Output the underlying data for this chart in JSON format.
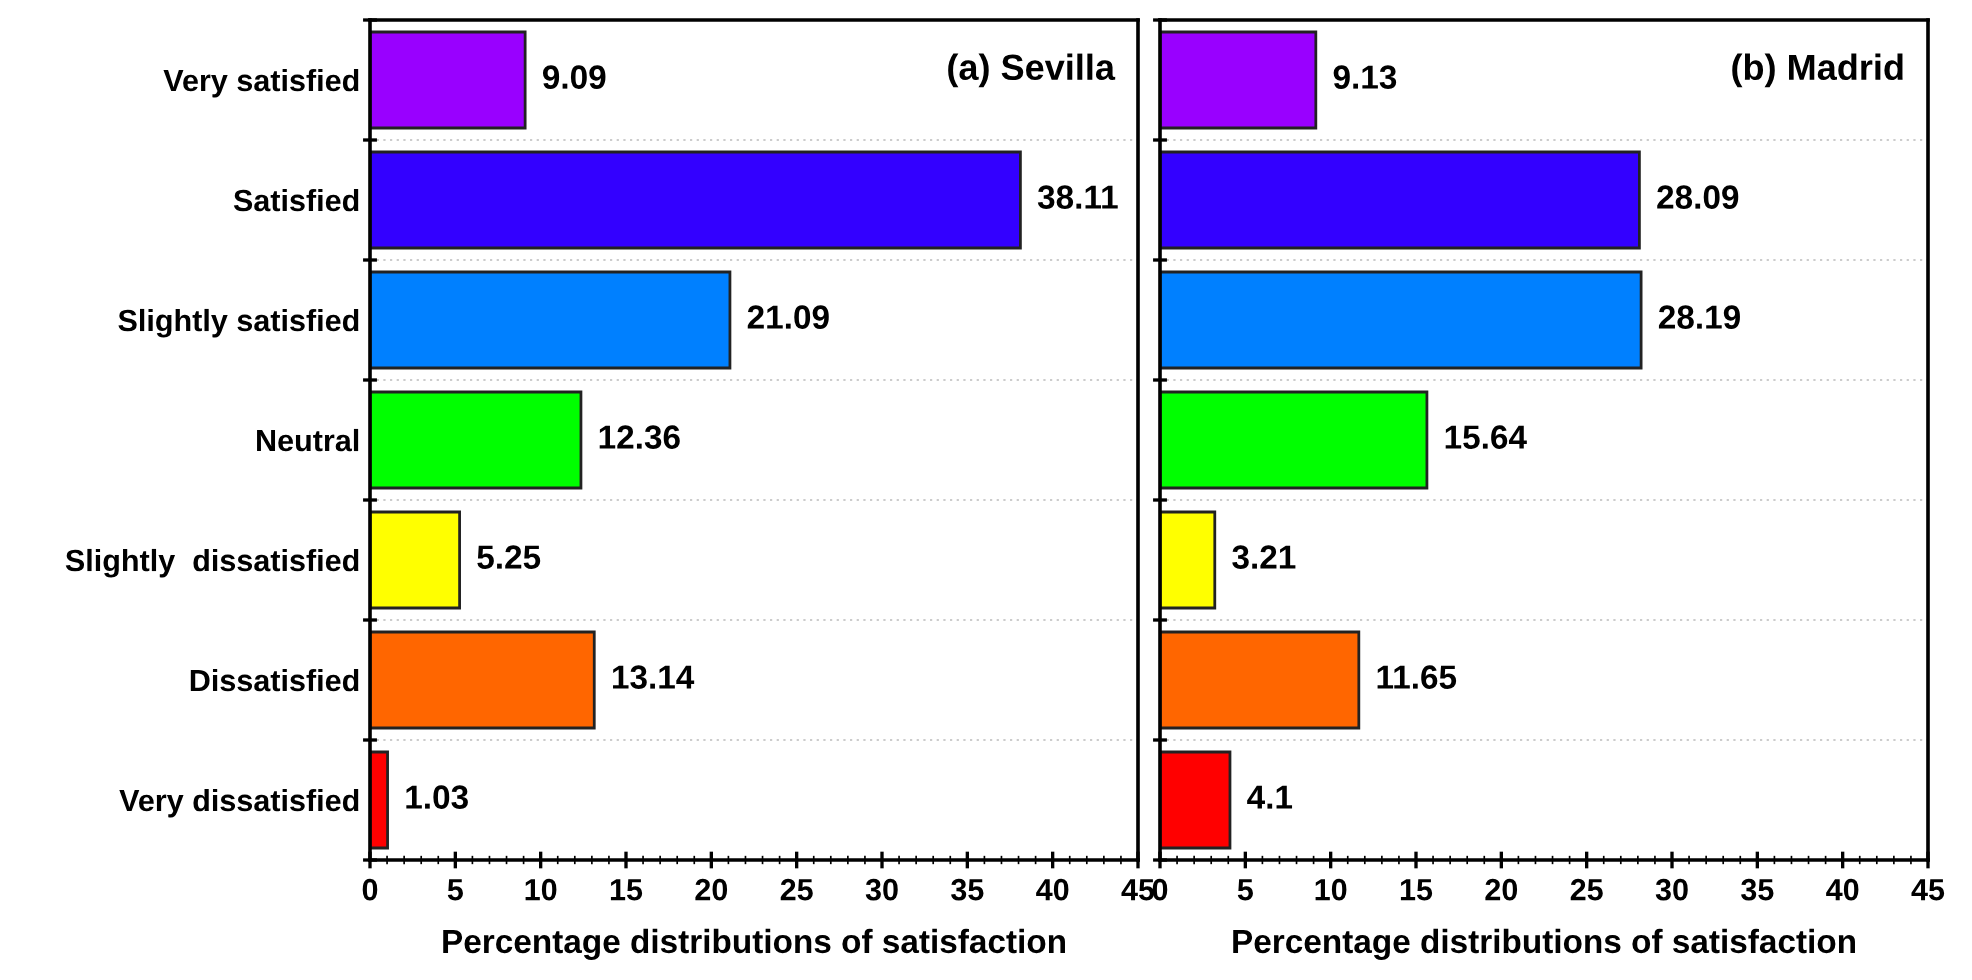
{
  "chart_data": [
    {
      "type": "bar",
      "orientation": "horizontal",
      "title": "(a) Sevilla",
      "xlabel": "Percentage distributions of satisfaction",
      "categories": [
        "Very satisfied",
        "Satisfied",
        "Slightly satisfied",
        "Neutral",
        "Slightly  dissatisfied",
        "Dissatisfied",
        "Very dissatisfied"
      ],
      "values": [
        9.09,
        38.11,
        21.09,
        12.36,
        5.25,
        13.14,
        1.03
      ],
      "colors": [
        "#9900ff",
        "#3300ff",
        "#0080ff",
        "#00ff00",
        "#ffff00",
        "#ff6600",
        "#ff0000"
      ],
      "xlim": [
        0,
        45
      ],
      "xticks": [
        0,
        5,
        10,
        15,
        20,
        25,
        30,
        35,
        40,
        45
      ],
      "data_labels": true,
      "grid": "y"
    },
    {
      "type": "bar",
      "orientation": "horizontal",
      "title": "(b) Madrid",
      "xlabel": "Percentage distributions of satisfaction",
      "categories": [
        null,
        null,
        null,
        null,
        null,
        null,
        null
      ],
      "values": [
        9.13,
        28.09,
        28.19,
        15.64,
        3.21,
        11.65,
        4.1
      ],
      "colors": [
        "#9900ff",
        "#3300ff",
        "#0080ff",
        "#00ff00",
        "#ffff00",
        "#ff6600",
        "#ff0000"
      ],
      "xlim": [
        0,
        45
      ],
      "xticks": [
        0,
        5,
        10,
        15,
        20,
        25,
        30,
        35,
        40,
        45
      ],
      "data_labels": true,
      "grid": "y",
      "tick_labels": "x"
    }
  ]
}
